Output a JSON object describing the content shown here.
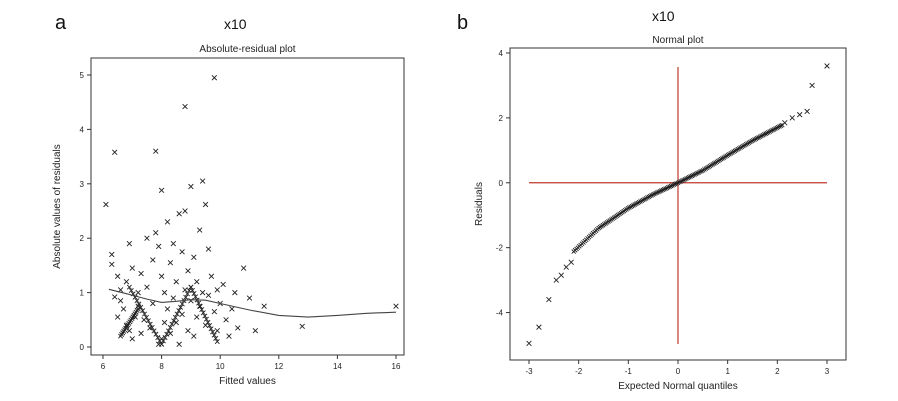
{
  "panels": [
    {
      "letter": "a",
      "scale_note": "x10"
    },
    {
      "letter": "b",
      "scale_note": "x10"
    }
  ],
  "chart_data": [
    {
      "type": "scatter",
      "title": "Absolute-residual plot",
      "xlabel": "Fitted values",
      "ylabel": "Absolute values of residuals",
      "xlim": [
        6,
        16
      ],
      "ylim": [
        0,
        5
      ],
      "xticks": [
        "6",
        "8",
        "10",
        "12",
        "14",
        "16"
      ],
      "yticks": [
        "0",
        "1",
        "2",
        "3",
        "4",
        "5"
      ],
      "marker": "x",
      "points": [
        [
          6.1,
          2.62
        ],
        [
          6.4,
          3.58
        ],
        [
          6.3,
          1.7
        ],
        [
          6.3,
          1.52
        ],
        [
          6.5,
          1.3
        ],
        [
          6.6,
          1.05
        ],
        [
          6.4,
          0.92
        ],
        [
          6.7,
          0.7
        ],
        [
          6.5,
          0.55
        ],
        [
          6.8,
          0.4
        ],
        [
          6.6,
          0.85
        ],
        [
          6.9,
          1.9
        ],
        [
          7.0,
          1.45
        ],
        [
          6.8,
          1.2
        ],
        [
          6.9,
          0.3
        ],
        [
          7.0,
          0.15
        ],
        [
          7.1,
          0.55
        ],
        [
          7.2,
          0.75
        ],
        [
          7.2,
          1.0
        ],
        [
          7.3,
          1.35
        ],
        [
          7.3,
          0.25
        ],
        [
          7.4,
          0.5
        ],
        [
          7.5,
          2.0
        ],
        [
          7.5,
          1.1
        ],
        [
          7.6,
          0.35
        ],
        [
          7.7,
          1.6
        ],
        [
          7.7,
          0.8
        ],
        [
          7.8,
          3.6
        ],
        [
          7.8,
          2.1
        ],
        [
          7.9,
          1.85
        ],
        [
          7.9,
          0.05
        ],
        [
          8.0,
          2.88
        ],
        [
          8.0,
          1.3
        ],
        [
          8.0,
          0.15
        ],
        [
          8.1,
          0.45
        ],
        [
          8.1,
          1.0
        ],
        [
          8.2,
          2.3
        ],
        [
          8.2,
          0.7
        ],
        [
          8.3,
          1.55
        ],
        [
          8.3,
          0.25
        ],
        [
          8.4,
          1.9
        ],
        [
          8.4,
          0.9
        ],
        [
          8.5,
          0.45
        ],
        [
          8.5,
          1.2
        ],
        [
          8.6,
          2.45
        ],
        [
          8.6,
          0.05
        ],
        [
          8.7,
          1.75
        ],
        [
          8.7,
          0.6
        ],
        [
          8.8,
          4.42
        ],
        [
          8.8,
          2.5
        ],
        [
          8.8,
          1.05
        ],
        [
          8.9,
          0.3
        ],
        [
          8.9,
          1.4
        ],
        [
          9.0,
          2.95
        ],
        [
          9.0,
          0.85
        ],
        [
          9.1,
          1.65
        ],
        [
          9.1,
          0.2
        ],
        [
          9.2,
          0.55
        ],
        [
          9.2,
          1.2
        ],
        [
          9.3,
          2.15
        ],
        [
          9.3,
          0.75
        ],
        [
          9.4,
          3.05
        ],
        [
          9.4,
          1.0
        ],
        [
          9.5,
          2.62
        ],
        [
          9.5,
          0.4
        ],
        [
          9.6,
          1.8
        ],
        [
          9.6,
          0.95
        ],
        [
          9.7,
          1.3
        ],
        [
          9.8,
          4.95
        ],
        [
          9.8,
          0.65
        ],
        [
          9.9,
          1.05
        ],
        [
          9.9,
          0.3
        ],
        [
          10.0,
          0.8
        ],
        [
          10.1,
          1.15
        ],
        [
          10.2,
          0.5
        ],
        [
          10.3,
          0.2
        ],
        [
          10.4,
          0.7
        ],
        [
          10.5,
          1.0
        ],
        [
          10.6,
          0.35
        ],
        [
          10.8,
          1.45
        ],
        [
          11.0,
          0.9
        ],
        [
          11.2,
          0.3
        ],
        [
          11.5,
          0.75
        ],
        [
          12.8,
          0.38
        ],
        [
          16.0,
          0.75
        ]
      ],
      "smooth_line": {
        "x": [
          6.2,
          6.8,
          7.5,
          8.0,
          8.5,
          9.0,
          9.5,
          10.0,
          11.0,
          12.0,
          13.0,
          14.0,
          15.0,
          16.0
        ],
        "y": [
          1.06,
          0.98,
          0.88,
          0.82,
          0.84,
          0.87,
          0.86,
          0.8,
          0.68,
          0.58,
          0.55,
          0.58,
          0.62,
          0.64
        ]
      }
    },
    {
      "type": "scatter",
      "title": "Normal plot",
      "xlabel": "Expected Normal quantiles",
      "ylabel": "Residuals",
      "xlim": [
        -3,
        3
      ],
      "ylim": [
        -5,
        4
      ],
      "xticks": [
        "-3",
        "-2",
        "-1",
        "0",
        "1",
        "2",
        "3"
      ],
      "yticks": [
        "-4",
        "-2",
        "0",
        "2",
        "4"
      ],
      "marker": "x",
      "reference_lines": {
        "x": 0,
        "y": 0,
        "color": "#c0392b"
      },
      "tail_points": [
        [
          -3.0,
          -4.95
        ],
        [
          -2.8,
          -4.45
        ],
        [
          -2.6,
          -3.6
        ],
        [
          -2.45,
          -3.0
        ],
        [
          -2.35,
          -2.85
        ],
        [
          -2.25,
          -2.6
        ],
        [
          -2.15,
          -2.45
        ],
        [
          2.15,
          1.85
        ],
        [
          2.3,
          2.0
        ],
        [
          2.45,
          2.1
        ],
        [
          2.6,
          2.2
        ],
        [
          2.7,
          3.0
        ],
        [
          3.0,
          3.6
        ]
      ],
      "dense_curve": {
        "x": [
          -2.1,
          -1.6,
          -1.0,
          -0.5,
          0.0,
          0.5,
          1.0,
          1.5,
          2.0,
          2.1
        ],
        "y": [
          -2.12,
          -1.4,
          -0.78,
          -0.36,
          0.0,
          0.38,
          0.85,
          1.3,
          1.7,
          1.78
        ]
      }
    }
  ]
}
